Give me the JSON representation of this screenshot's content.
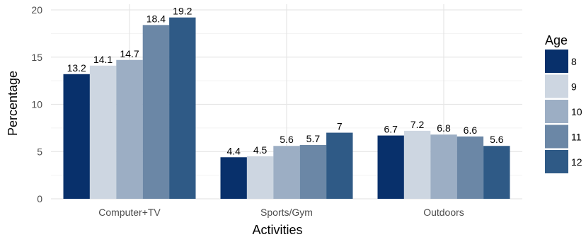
{
  "chart_data": {
    "type": "bar",
    "title": "",
    "xlabel": "Activities",
    "ylabel": "Percentage",
    "categories": [
      "Computer+TV",
      "Sports/Gym",
      "Outdoors"
    ],
    "series": [
      {
        "name": "8",
        "color": "#08306b",
        "values": [
          13.2,
          4.4,
          6.7
        ]
      },
      {
        "name": "9",
        "color": "#cdd6e1",
        "values": [
          14.1,
          4.5,
          7.2
        ]
      },
      {
        "name": "10",
        "color": "#9caec4",
        "values": [
          14.7,
          5.6,
          6.8
        ]
      },
      {
        "name": "11",
        "color": "#6b87a6",
        "values": [
          18.4,
          5.7,
          6.6
        ]
      },
      {
        "name": "12",
        "color": "#2f5a86",
        "values": [
          19.2,
          7,
          5.6
        ]
      }
    ],
    "data_labels": [
      [
        "13.2",
        "4.4",
        "6.7"
      ],
      [
        "14.1",
        "4.5",
        "7.2"
      ],
      [
        "14.7",
        "5.6",
        "6.8"
      ],
      [
        "18.4",
        "5.7",
        "6.6"
      ],
      [
        "19.2",
        "7",
        "5.6"
      ]
    ],
    "y_ticks": [
      "0",
      "5",
      "10",
      "15",
      "20"
    ],
    "ylim": [
      0,
      20.6
    ],
    "grid": true,
    "legend": {
      "title": "Age",
      "placement": "right"
    }
  }
}
